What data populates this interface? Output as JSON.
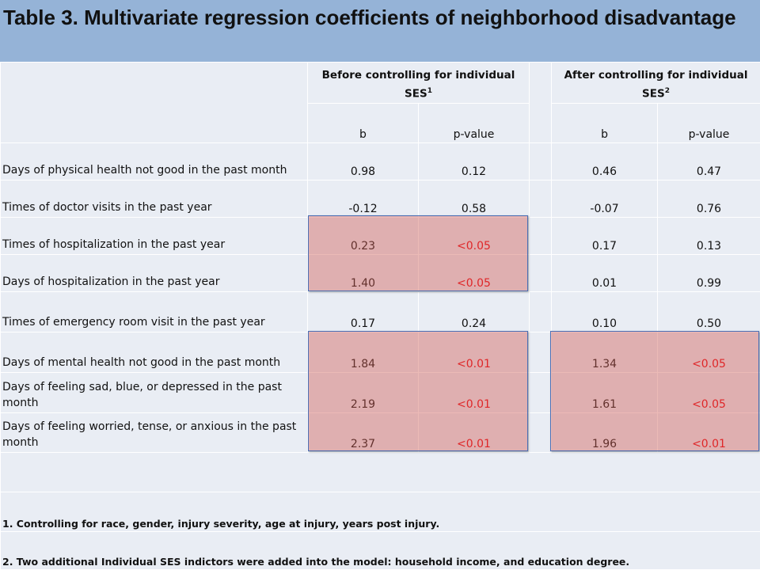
{
  "title": "Table 3. Multivariate regression coefficients of neighborhood disadvantage",
  "headers": {
    "before_main": "Before controlling for individual SES",
    "before_sup": "1",
    "after_main": "After controlling for individual SES",
    "after_sup": "2",
    "b_label": "b",
    "p_label": "p-value"
  },
  "rows": [
    {
      "label": "Days of physical health not good in the past month",
      "b1": "0.98",
      "p1": "0.12",
      "b2": "0.46",
      "p2": "0.47"
    },
    {
      "label": "Times of doctor visits in the past year",
      "b1": "-0.12",
      "p1": "0.58",
      "b2": "-0.07",
      "p2": "0.76"
    },
    {
      "label": "Times of hospitalization in the past year",
      "b1": "0.23",
      "p1": "<0.05",
      "b2": "0.17",
      "p2": "0.13"
    },
    {
      "label": "Days of hospitalization in the past year",
      "b1": "1.40",
      "p1": "<0.05",
      "b2": "0.01",
      "p2": "0.99"
    },
    {
      "label": "Times of emergency room visit in the past year",
      "b1": "0.17",
      "p1": "0.24",
      "b2": "0.10",
      "p2": "0.50"
    },
    {
      "label": "Days of mental health not good in the past month",
      "b1": "1.84",
      "p1": "<0.01",
      "b2": "1.34",
      "p2": "<0.05"
    },
    {
      "label": "Days of feeling sad, blue, or depressed in the past month",
      "b1": "2.19",
      "p1": "<0.01",
      "b2": "1.61",
      "p2": "<0.05"
    },
    {
      "label": "Days of feeling worried, tense, or anxious in the past month",
      "b1": "2.37",
      "p1": "<0.01",
      "b2": "1.96",
      "p2": "<0.01"
    }
  ],
  "notes": [
    "1. Controlling for race, gender, injury severity, age at injury, years post injury.",
    "2. Two additional Individual SES indictors were added into the model: household income, and education degree."
  ],
  "colors": {
    "title_bg": "#95b3d7",
    "cell_bg": "#e9edf4",
    "significant_text": "#e8000b",
    "highlight_fill": "#d25a50",
    "highlight_border": "#4a6fb5"
  }
}
